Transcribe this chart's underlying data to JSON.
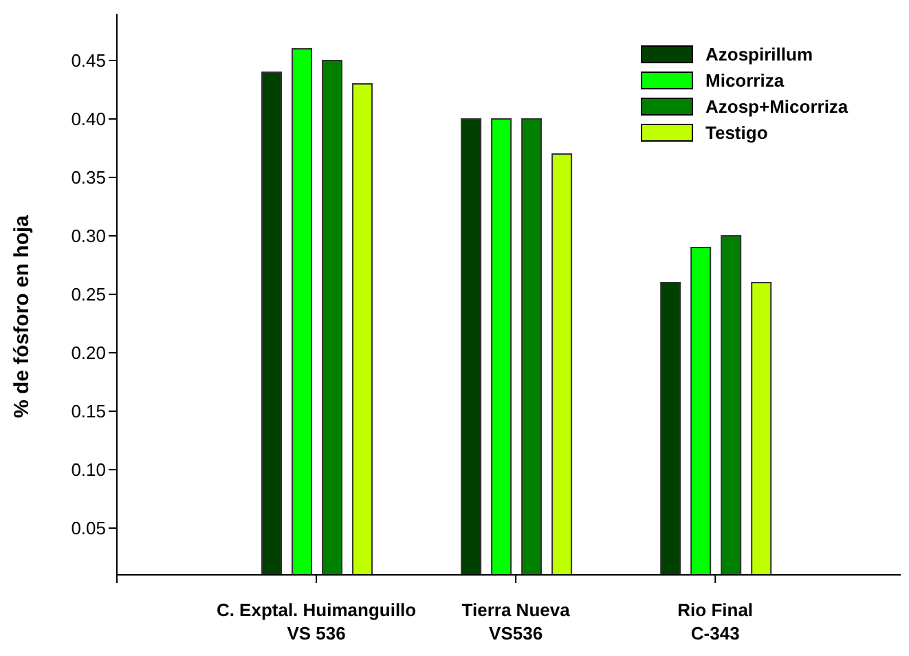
{
  "chart_data": {
    "type": "bar",
    "ylabel": "% de fósforo en hoja",
    "categories": [
      "C. Exptal. Huimanguillo\nVS 536",
      "Tierra Nueva\nVS536",
      "Rio Final\nC-343"
    ],
    "series": [
      {
        "name": "Azospirillum",
        "color": "#004000",
        "values": [
          0.44,
          0.4,
          0.26
        ]
      },
      {
        "name": "Micorriza",
        "color": "#00ff00",
        "values": [
          0.46,
          0.4,
          0.29
        ]
      },
      {
        "name": "Azosp+Micorriza",
        "color": "#008000",
        "values": [
          0.45,
          0.4,
          0.3
        ]
      },
      {
        "name": "Testigo",
        "color": "#c0ff00",
        "values": [
          0.43,
          0.37,
          0.26
        ]
      }
    ],
    "ylim": [
      0.01,
      0.49
    ],
    "yticks": [
      0.05,
      {
        "value": 0.1,
        "label": "0.10"
      },
      0.15,
      {
        "value": 0.2,
        "label": "0.20"
      },
      0.25,
      {
        "value": 0.3,
        "label": "0.30"
      },
      0.35,
      {
        "value": 0.4,
        "label": "0.40"
      },
      0.45
    ],
    "grid": false,
    "legend": "top right"
  }
}
